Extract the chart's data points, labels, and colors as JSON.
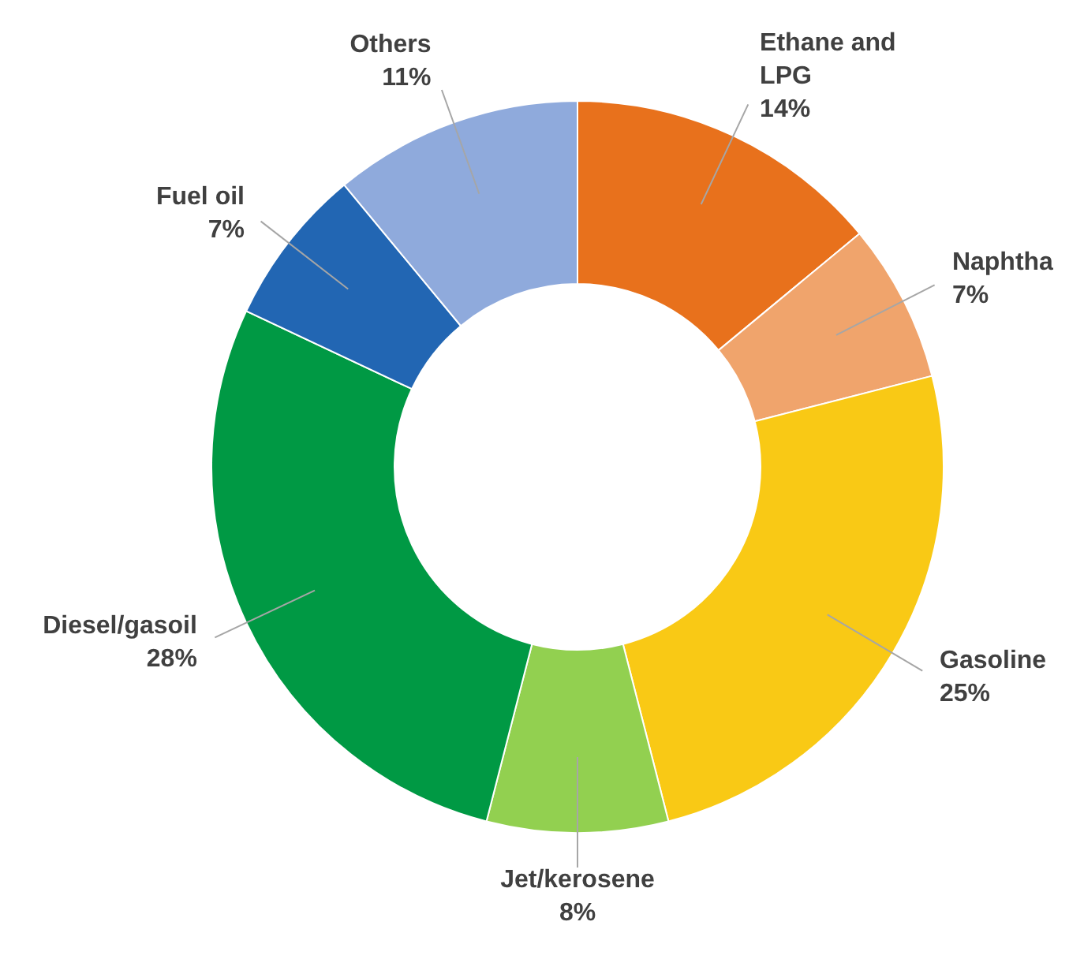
{
  "chart_data": {
    "type": "donut",
    "categories": [
      "Ethane and LPG",
      "Naphtha",
      "Gasoline",
      "Jet/kerosene",
      "Diesel/gasoil",
      "Fuel oil",
      "Others"
    ],
    "values": [
      14,
      7,
      25,
      8,
      28,
      7,
      11
    ],
    "value_labels": [
      "14%",
      "7%",
      "25%",
      "8%",
      "28%",
      "7%",
      "11%"
    ],
    "colors": [
      "#e8711c",
      "#f0a46c",
      "#f9c915",
      "#92d050",
      "#009944",
      "#2266b3",
      "#8faadc"
    ]
  }
}
